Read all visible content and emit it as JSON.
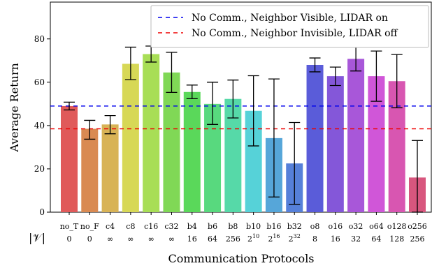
{
  "chart_data": {
    "type": "bar",
    "title": "",
    "xlabel": "Communication Protocols",
    "ylabel": "Average Return",
    "row_header": "|𝒱|",
    "ylim": [
      0,
      97
    ],
    "yticks": [
      0,
      20,
      40,
      60,
      80
    ],
    "grid": false,
    "legend_position": "top-right",
    "categories": [
      "no_T",
      "no_F",
      "c4",
      "c8",
      "c16",
      "c32",
      "b4",
      "b6",
      "b8",
      "b10",
      "b16",
      "b32",
      "o8",
      "o16",
      "o32",
      "o64",
      "o128",
      "o256"
    ],
    "vocab_size_base": [
      "0",
      "0",
      "∞",
      "∞",
      "∞",
      "∞",
      "16",
      "64",
      "256",
      "2",
      "2",
      "2",
      "8",
      "16",
      "32",
      "64",
      "128",
      "256"
    ],
    "vocab_size_exp": [
      "",
      "",
      "",
      "",
      "",
      "",
      "",
      "",
      "",
      "10",
      "16",
      "32",
      "",
      "",
      "",
      "",
      "",
      ""
    ],
    "values": [
      49,
      38.5,
      40.5,
      68.5,
      73,
      64.5,
      55.5,
      50,
      52.3,
      46.8,
      34.2,
      22.5,
      68,
      62.8,
      70.8,
      62.8,
      60.5,
      16
    ],
    "err_low": [
      47.2,
      33.7,
      36.2,
      61.2,
      69.3,
      55.3,
      52.4,
      40.5,
      43.5,
      30.6,
      7.0,
      3.6,
      64.8,
      58.5,
      65.2,
      51.2,
      48.2,
      0
    ],
    "err_high": [
      50.8,
      42.4,
      44.6,
      76.2,
      76.7,
      73.8,
      58.7,
      60.0,
      61.0,
      63.0,
      61.5,
      41.4,
      71.2,
      67.0,
      76.5,
      74.4,
      72.8,
      33.1
    ],
    "colors": [
      "#e05a5a",
      "#d98a52",
      "#d8b356",
      "#d7d856",
      "#a8de56",
      "#80d856",
      "#5ad85a",
      "#58d97e",
      "#56d9a8",
      "#56d2d8",
      "#56a6d9",
      "#5680d9",
      "#5a5cd9",
      "#8457d9",
      "#a857d9",
      "#d056d8",
      "#d856b1",
      "#d8567e"
    ],
    "hlines": [
      {
        "name": "No Comm., Neighbor Visible, LIDAR on",
        "value": 49,
        "color": "#0000ee"
      },
      {
        "name": "No Comm., Neighbor Invisible, LIDAR off",
        "value": 38.5,
        "color": "#ee0000"
      }
    ]
  }
}
